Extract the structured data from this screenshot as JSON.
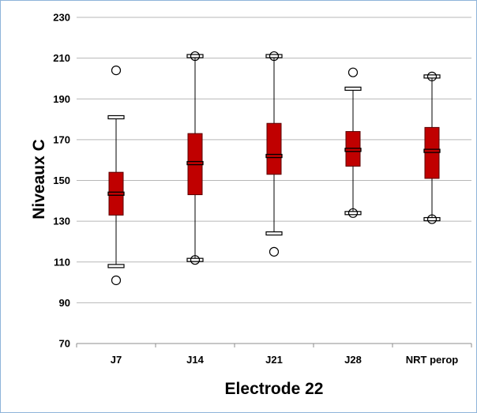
{
  "chart_data": {
    "type": "boxplot",
    "title": "",
    "xlabel": "Electrode 22",
    "ylabel": "Niveaux C",
    "ylim": [
      70,
      230
    ],
    "yticks": [
      70,
      90,
      110,
      130,
      150,
      170,
      190,
      210,
      230
    ],
    "grid": true,
    "legend": "none",
    "box_color": "#c00000",
    "categories": [
      "J7",
      "J14",
      "J21",
      "J28",
      "NRT perop"
    ],
    "series": [
      {
        "category": "J7",
        "q1": 133,
        "median": 143.5,
        "q3": 154,
        "whisker_low": 108,
        "whisker_high": 181,
        "outlier_low": 101,
        "outlier_high": 204
      },
      {
        "category": "J14",
        "q1": 143,
        "median": 158.5,
        "q3": 173,
        "whisker_low": 111,
        "whisker_high": 211,
        "outlier_low": 111,
        "outlier_high": 211
      },
      {
        "category": "J21",
        "q1": 153,
        "median": 162,
        "q3": 178,
        "whisker_low": 124,
        "whisker_high": 211,
        "outlier_low": 115,
        "outlier_high": 211
      },
      {
        "category": "J28",
        "q1": 157,
        "median": 165,
        "q3": 174,
        "whisker_low": 134,
        "whisker_high": 195,
        "outlier_low": 134,
        "outlier_high": 203
      },
      {
        "category": "NRT perop",
        "q1": 151,
        "median": 164.5,
        "q3": 176,
        "whisker_low": 131,
        "whisker_high": 201,
        "outlier_low": 131,
        "outlier_high": 201
      }
    ]
  }
}
